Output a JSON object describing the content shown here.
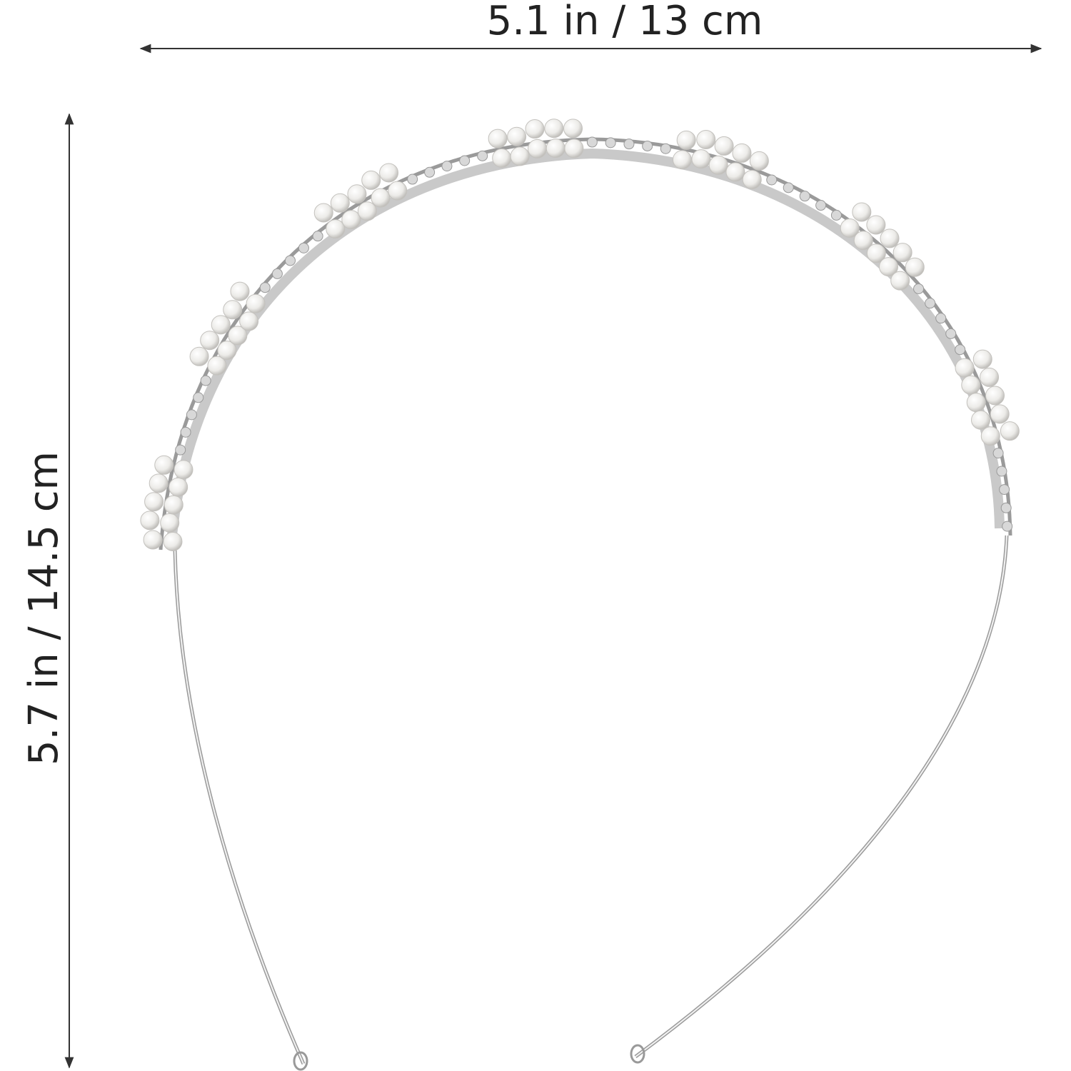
{
  "dimensions": {
    "width": "5.1 in / 13 cm",
    "height": "5.7 in / 14.5 cm"
  }
}
